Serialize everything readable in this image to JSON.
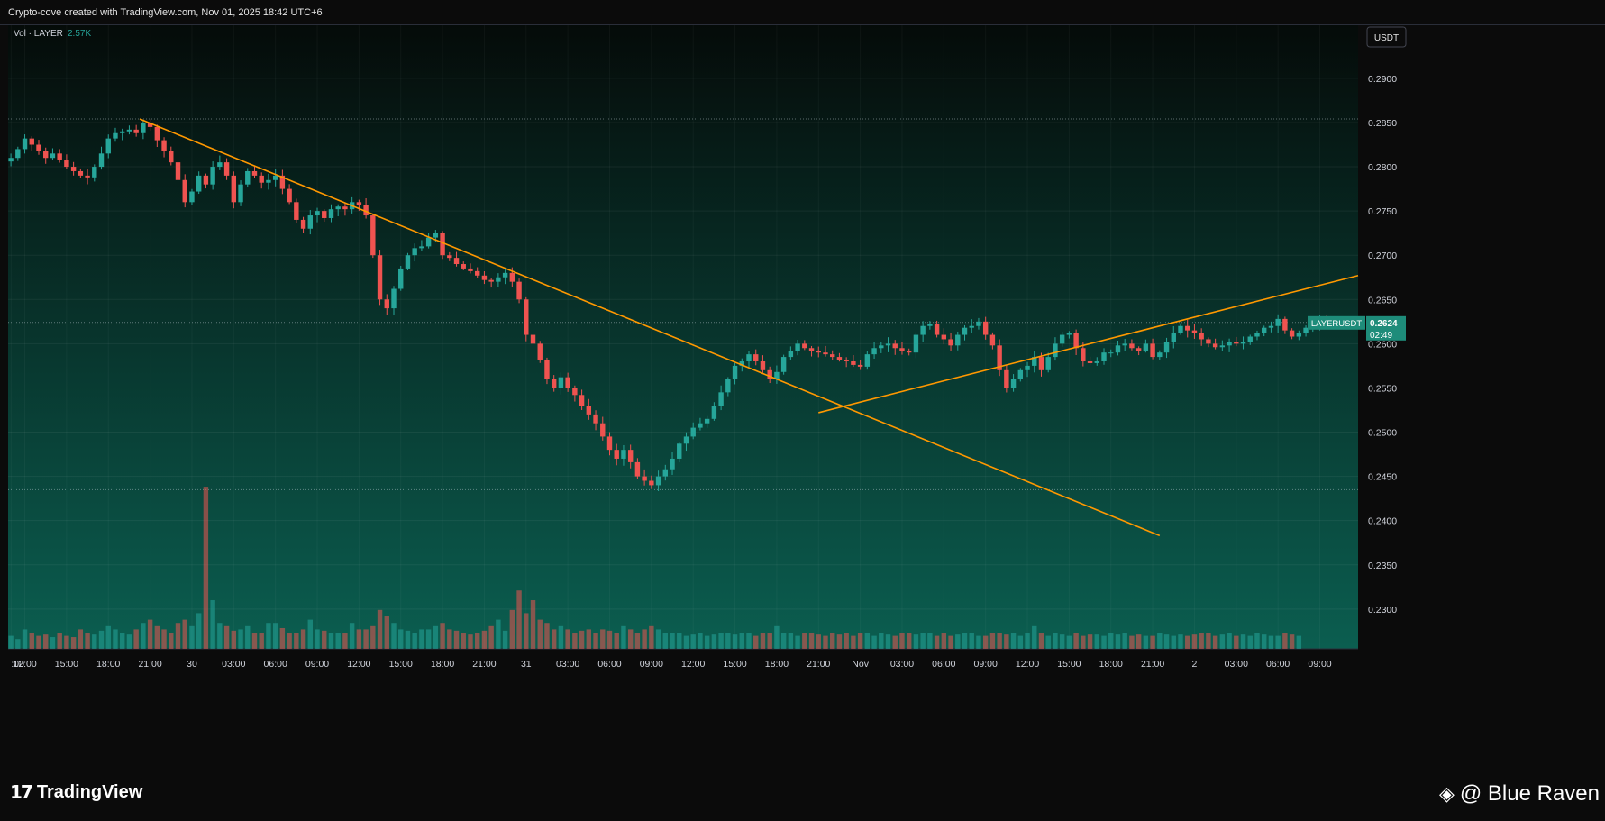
{
  "header": {
    "caption": "Crypto-cove created with TradingView.com, Nov 01, 2025 18:42 UTC+6"
  },
  "legend": {
    "vol_label": "Vol · LAYER",
    "vol_value": "2.57K"
  },
  "currency_button": "USDT",
  "price_tag": {
    "symbol": "LAYERUSDT",
    "price": "0.2624",
    "countdown": "02:49"
  },
  "footer": {
    "brand": "TradingView",
    "watermark": "@ Blue Raven"
  },
  "colors": {
    "up": "#26a69a",
    "down": "#ef5350",
    "trendline": "#ff9800",
    "background_top": "#050b09",
    "background_bottom": "#0b5e50"
  },
  "icons": [
    "tradingview-logo-icon",
    "binance-diamond-icon"
  ],
  "chart_data": {
    "type": "candlestick",
    "symbol": "LAYERUSDT",
    "interval_minutes": 30,
    "start": "Oct 29 11:00",
    "y_ticks": [
      "0.2900",
      "0.2850",
      "0.2800",
      "0.2750",
      "0.2700",
      "0.2650",
      "0.2600",
      "0.2550",
      "0.2500",
      "0.2450",
      "0.2400",
      "0.2350",
      "0.2300"
    ],
    "x_ticks": [
      {
        "t": 0.03,
        "label": ":00"
      },
      {
        "t": 2,
        "label": "12:00"
      },
      {
        "t": 8,
        "label": "15:00"
      },
      {
        "t": 14,
        "label": "18:00"
      },
      {
        "t": 20,
        "label": "21:00"
      },
      {
        "t": 26,
        "label": "30"
      },
      {
        "t": 32,
        "label": "03:00"
      },
      {
        "t": 38,
        "label": "06:00"
      },
      {
        "t": 44,
        "label": "09:00"
      },
      {
        "t": 50,
        "label": "12:00"
      },
      {
        "t": 56,
        "label": "15:00"
      },
      {
        "t": 62,
        "label": "18:00"
      },
      {
        "t": 68,
        "label": "21:00"
      },
      {
        "t": 74,
        "label": "31"
      },
      {
        "t": 80,
        "label": "03:00"
      },
      {
        "t": 86,
        "label": "06:00"
      },
      {
        "t": 92,
        "label": "09:00"
      },
      {
        "t": 98,
        "label": "12:00"
      },
      {
        "t": 104,
        "label": "15:00"
      },
      {
        "t": 110,
        "label": "18:00"
      },
      {
        "t": 116,
        "label": "21:00"
      },
      {
        "t": 122,
        "label": "Nov"
      },
      {
        "t": 128,
        "label": "03:00"
      },
      {
        "t": 134,
        "label": "06:00"
      },
      {
        "t": 140,
        "label": "09:00"
      },
      {
        "t": 146,
        "label": "12:00"
      },
      {
        "t": 152,
        "label": "15:00"
      },
      {
        "t": 158,
        "label": "18:00"
      },
      {
        "t": 164,
        "label": "21:00"
      },
      {
        "t": 170,
        "label": "2"
      },
      {
        "t": 176,
        "label": "03:00"
      },
      {
        "t": 182,
        "label": "06:00"
      },
      {
        "t": 188,
        "label": "09:00"
      }
    ],
    "y_range": [
      0.2255,
      0.296
    ],
    "x_range": [
      -0.4,
      193.5
    ],
    "closes": [
      0.281,
      0.282,
      0.2832,
      0.2825,
      0.2818,
      0.281,
      0.2815,
      0.2808,
      0.28,
      0.2795,
      0.279,
      0.2788,
      0.28,
      0.2815,
      0.2832,
      0.2838,
      0.284,
      0.2842,
      0.2838,
      0.285,
      0.2845,
      0.283,
      0.2818,
      0.2805,
      0.2785,
      0.276,
      0.2772,
      0.279,
      0.278,
      0.28,
      0.2805,
      0.279,
      0.276,
      0.278,
      0.2795,
      0.279,
      0.2782,
      0.2785,
      0.279,
      0.2775,
      0.276,
      0.274,
      0.273,
      0.2745,
      0.275,
      0.2742,
      0.2752,
      0.2755,
      0.2752,
      0.276,
      0.2757,
      0.2745,
      0.27,
      0.265,
      0.264,
      0.2662,
      0.2685,
      0.27,
      0.2708,
      0.271,
      0.272,
      0.2725,
      0.27,
      0.2697,
      0.269,
      0.2685,
      0.2682,
      0.2677,
      0.2672,
      0.267,
      0.2675,
      0.268,
      0.267,
      0.265,
      0.261,
      0.26,
      0.2582,
      0.256,
      0.255,
      0.2562,
      0.255,
      0.2542,
      0.253,
      0.252,
      0.251,
      0.2495,
      0.248,
      0.247,
      0.248,
      0.2466,
      0.245,
      0.2445,
      0.244,
      0.245,
      0.2458,
      0.247,
      0.2487,
      0.2495,
      0.2505,
      0.251,
      0.2515,
      0.253,
      0.2545,
      0.256,
      0.2575,
      0.258,
      0.2588,
      0.258,
      0.257,
      0.256,
      0.2568,
      0.2585,
      0.2592,
      0.26,
      0.2595,
      0.2592,
      0.259,
      0.2588,
      0.2585,
      0.2582,
      0.258,
      0.2576,
      0.2574,
      0.2588,
      0.2595,
      0.2598,
      0.26,
      0.2595,
      0.2592,
      0.259,
      0.261,
      0.262,
      0.2622,
      0.261,
      0.2605,
      0.2598,
      0.261,
      0.2618,
      0.262,
      0.2625,
      0.261,
      0.2598,
      0.257,
      0.255,
      0.256,
      0.257,
      0.2575,
      0.2585,
      0.257,
      0.2585,
      0.26,
      0.261,
      0.2612,
      0.2595,
      0.258,
      0.2578,
      0.258,
      0.259,
      0.259,
      0.2598,
      0.26,
      0.2595,
      0.2592,
      0.26,
      0.2585,
      0.259,
      0.2602,
      0.2612,
      0.262,
      0.2615,
      0.2612,
      0.2605,
      0.26,
      0.2596,
      0.2598,
      0.2602,
      0.26,
      0.2602,
      0.2608,
      0.2612,
      0.2618,
      0.262,
      0.2628,
      0.2615,
      0.2608,
      0.2612,
      0.2618,
      0.2622,
      0.2628,
      0.2624
    ],
    "volumes": [
      20,
      15,
      30,
      25,
      20,
      22,
      18,
      25,
      20,
      18,
      30,
      25,
      22,
      28,
      35,
      30,
      25,
      22,
      30,
      40,
      45,
      35,
      30,
      25,
      40,
      45,
      35,
      55,
      250,
      75,
      40,
      35,
      28,
      30,
      35,
      25,
      25,
      40,
      40,
      32,
      25,
      25,
      30,
      45,
      30,
      28,
      25,
      25,
      25,
      40,
      30,
      30,
      35,
      60,
      50,
      40,
      30,
      28,
      25,
      30,
      30,
      35,
      40,
      30,
      28,
      25,
      22,
      25,
      28,
      35,
      45,
      28,
      60,
      90,
      55,
      75,
      45,
      40,
      30,
      35,
      30,
      25,
      28,
      30,
      25,
      30,
      28,
      25,
      35,
      30,
      25,
      30,
      35,
      30,
      25,
      25,
      25,
      20,
      22,
      25,
      20,
      22,
      25,
      25,
      22,
      25,
      25,
      20,
      25,
      25,
      35,
      25,
      25,
      20,
      25,
      25,
      22,
      20,
      25,
      22,
      25,
      20,
      25,
      25,
      20,
      25,
      22,
      20,
      25,
      25,
      22,
      25,
      25,
      20,
      25,
      20,
      22,
      25,
      25,
      20,
      20,
      25,
      25,
      22,
      25,
      20,
      25,
      35,
      25,
      20,
      25,
      22,
      20,
      25,
      20,
      22,
      22,
      20,
      25,
      22,
      25,
      20,
      22,
      20,
      20,
      25,
      22,
      20,
      22,
      20,
      22,
      25,
      25,
      20,
      22,
      25,
      20,
      22,
      20,
      25,
      22,
      20,
      20,
      25,
      22,
      20
    ],
    "volume_scale": {
      "max_value": 250,
      "height_ratio": 0.26
    },
    "horizontal_levels": [
      0.2854,
      0.2624,
      0.2435
    ],
    "trendlines": [
      {
        "name": "descending",
        "points": [
          {
            "t": 18.5,
            "price": 0.2854
          },
          {
            "t": 165,
            "price": 0.2383
          }
        ]
      },
      {
        "name": "ascending",
        "points": [
          {
            "t": 116,
            "price": 0.2522
          },
          {
            "t": 193.5,
            "price": 0.2677
          }
        ]
      }
    ]
  }
}
